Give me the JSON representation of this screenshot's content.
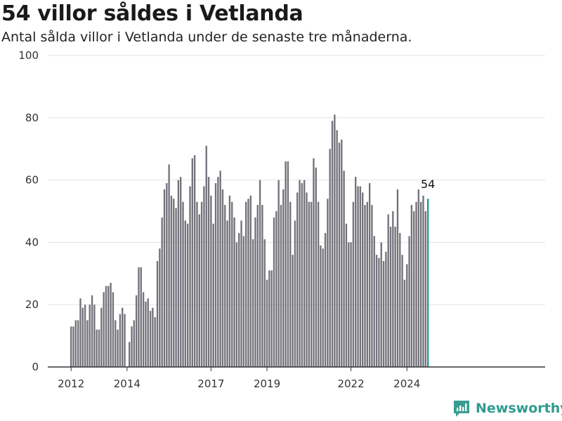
{
  "header": {
    "title": "54 villor såldes i Vetlanda",
    "subtitle": "Antal sålda villor i Vetlanda under de senaste tre månaderna."
  },
  "brand": {
    "name": "Newsworthy",
    "icon": "newsworthy-logo-icon",
    "color": "#3a9d91"
  },
  "colors": {
    "bar": "#73727a",
    "highlight": "#1b9c8c",
    "grid": "#e3e3e3",
    "axis": "#333333"
  },
  "chart_data": {
    "type": "bar",
    "title": "54 villor såldes i Vetlanda",
    "subtitle": "Antal sålda villor i Vetlanda under de senaste tre månaderna.",
    "xlabel": "",
    "ylabel": "",
    "ylim": [
      0,
      100
    ],
    "yticks": [
      0,
      20,
      40,
      60,
      80,
      100
    ],
    "xticks": [
      "2012",
      "2014",
      "2017",
      "2019",
      "2022",
      "2024"
    ],
    "x_start": "2012-01",
    "frequency": "monthly",
    "grid": true,
    "legend": "none",
    "highlight_last": true,
    "last_value_label": "54",
    "values": [
      13,
      13,
      15,
      15,
      22,
      19,
      20,
      15,
      20,
      23,
      20,
      12,
      12,
      19,
      24,
      26,
      26,
      27,
      24,
      15,
      12,
      17,
      19,
      17,
      0,
      8,
      13,
      15,
      23,
      32,
      32,
      24,
      21,
      22,
      18,
      19,
      16,
      34,
      38,
      48,
      57,
      59,
      65,
      55,
      54,
      51,
      60,
      61,
      53,
      47,
      46,
      58,
      67,
      68,
      53,
      49,
      53,
      58,
      71,
      61,
      55,
      46,
      59,
      61,
      63,
      57,
      52,
      47,
      55,
      53,
      48,
      40,
      43,
      47,
      42,
      53,
      54,
      55,
      41,
      48,
      52,
      60,
      52,
      41,
      28,
      31,
      31,
      48,
      50,
      60,
      52,
      57,
      66,
      66,
      53,
      36,
      47,
      56,
      60,
      59,
      60,
      56,
      53,
      53,
      67,
      64,
      53,
      39,
      38,
      43,
      54,
      70,
      79,
      81,
      76,
      72,
      73,
      63,
      46,
      40,
      40,
      53,
      61,
      58,
      58,
      56,
      52,
      53,
      59,
      52,
      42,
      36,
      35,
      40,
      34,
      37,
      49,
      45,
      50,
      45,
      57,
      43,
      36,
      28,
      33,
      42,
      52,
      50,
      53,
      57,
      53,
      55,
      50,
      54
    ]
  }
}
